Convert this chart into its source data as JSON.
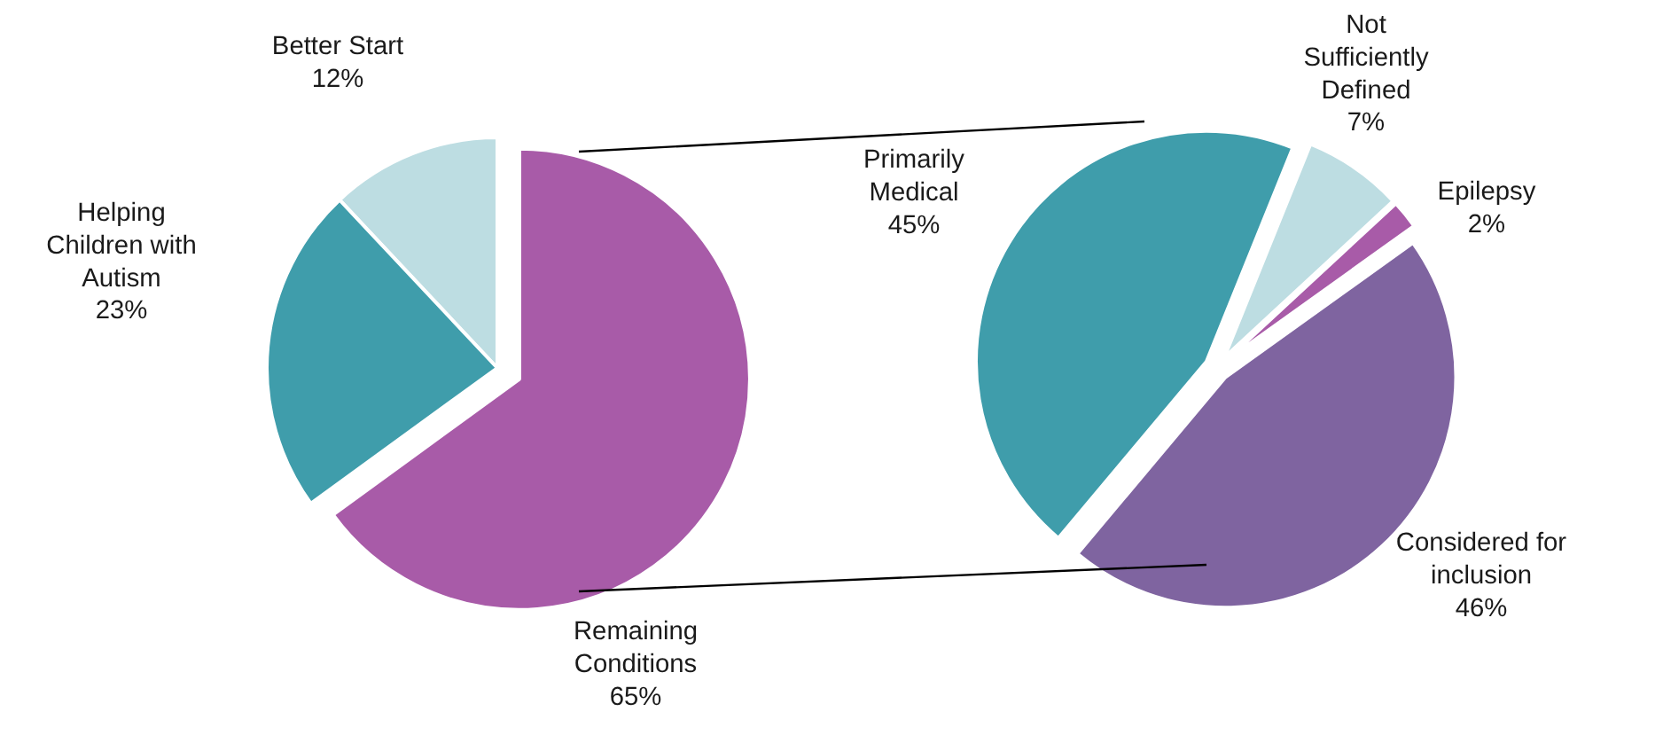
{
  "chart_data": [
    {
      "type": "pie",
      "categories": [
        "Better Start",
        "Helping Children with Autism",
        "Remaining Conditions"
      ],
      "values": [
        12,
        23,
        65
      ],
      "colors": [
        "#bddde2",
        "#3f9dab",
        "#a85ba8"
      ],
      "value_labels": [
        "12%",
        "23%",
        "65%"
      ]
    },
    {
      "type": "pie",
      "categories": [
        "Not Sufficiently Defined",
        "Epilepsy",
        "Considered for inclusion",
        "Primarily Medical"
      ],
      "values": [
        7,
        2,
        46,
        45
      ],
      "colors": [
        "#bddde2",
        "#a85ba8",
        "#7f64a0",
        "#3f9dab"
      ],
      "value_labels": [
        "7%",
        "2%",
        "46%",
        "45%"
      ]
    }
  ]
}
